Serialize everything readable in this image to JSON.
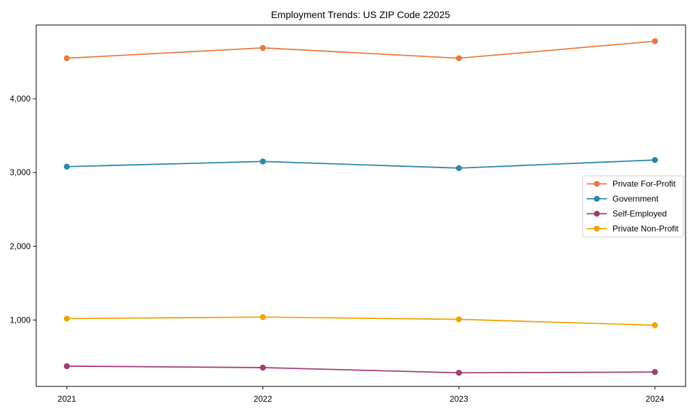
{
  "chart_data": {
    "type": "line",
    "title": "Employment Trends: US ZIP Code 22025",
    "x": [
      "2021",
      "2022",
      "2023",
      "2024"
    ],
    "xlabel": "",
    "ylabel": "",
    "ylim": [
      100,
      5000
    ],
    "yticks": [
      {
        "value": 1000,
        "label": "1,000"
      },
      {
        "value": 2000,
        "label": "2,000"
      },
      {
        "value": 3000,
        "label": "3,000"
      },
      {
        "value": 4000,
        "label": "4,000"
      }
    ],
    "grid": false,
    "legend_position": "right-center",
    "legend_border_color": "#cccccc",
    "axis_color": "#000000",
    "series": [
      {
        "name": "Private For-Profit",
        "color": "#E8793E",
        "values": [
          4550,
          4690,
          4550,
          4780
        ]
      },
      {
        "name": "Government",
        "color": "#2E86AB",
        "values": [
          3080,
          3150,
          3060,
          3170
        ]
      },
      {
        "name": "Self-Employed",
        "color": "#A23B72",
        "values": [
          375,
          355,
          285,
          295
        ]
      },
      {
        "name": "Private Non-Profit",
        "color": "#F2A104",
        "values": [
          1020,
          1040,
          1010,
          930
        ]
      }
    ]
  }
}
